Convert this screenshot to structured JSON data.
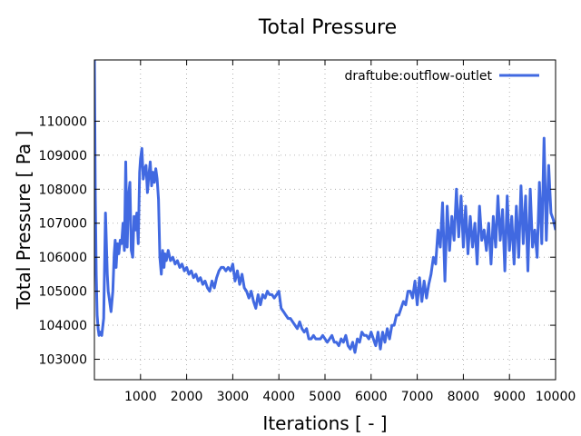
{
  "chart_data": {
    "type": "line",
    "title": "Total Pressure",
    "xlabel": "Iterations [ - ]",
    "ylabel": "Total Pressure [ Pa ]",
    "xlim": [
      0,
      10000
    ],
    "ylim": [
      102400,
      111800
    ],
    "xticks": [
      1000,
      2000,
      3000,
      4000,
      5000,
      6000,
      7000,
      8000,
      9000,
      10000
    ],
    "yticks": [
      103000,
      104000,
      105000,
      106000,
      107000,
      108000,
      109000,
      110000
    ],
    "grid": true,
    "legend_position": "top-right",
    "series": [
      {
        "name": "draftube:outflow-outlet",
        "color": "#4169e1",
        "x": [
          0,
          20,
          40,
          60,
          80,
          100,
          130,
          160,
          200,
          240,
          280,
          300,
          320,
          360,
          400,
          430,
          450,
          470,
          500,
          530,
          560,
          590,
          620,
          650,
          680,
          710,
          740,
          770,
          800,
          830,
          860,
          890,
          920,
          950,
          980,
          1000,
          1030,
          1060,
          1090,
          1120,
          1150,
          1180,
          1210,
          1240,
          1270,
          1300,
          1330,
          1360,
          1390,
          1420,
          1450,
          1480,
          1510,
          1530,
          1560,
          1600,
          1650,
          1700,
          1750,
          1800,
          1850,
          1900,
          1950,
          2000,
          2050,
          2100,
          2150,
          2200,
          2250,
          2300,
          2350,
          2400,
          2450,
          2500,
          2550,
          2600,
          2650,
          2700,
          2750,
          2800,
          2850,
          2900,
          2950,
          3000,
          3050,
          3100,
          3150,
          3200,
          3250,
          3300,
          3350,
          3400,
          3450,
          3500,
          3550,
          3600,
          3650,
          3700,
          3750,
          3800,
          3850,
          3900,
          3950,
          4000,
          4050,
          4100,
          4150,
          4200,
          4250,
          4300,
          4350,
          4400,
          4450,
          4500,
          4550,
          4600,
          4650,
          4700,
          4750,
          4800,
          4850,
          4900,
          4950,
          5000,
          5050,
          5100,
          5150,
          5200,
          5250,
          5300,
          5350,
          5400,
          5450,
          5500,
          5550,
          5600,
          5650,
          5700,
          5750,
          5800,
          5850,
          5900,
          5950,
          6000,
          6050,
          6100,
          6150,
          6200,
          6250,
          6300,
          6350,
          6400,
          6450,
          6500,
          6550,
          6600,
          6650,
          6700,
          6750,
          6800,
          6850,
          6900,
          6950,
          7000,
          7050,
          7100,
          7150,
          7200,
          7250,
          7300,
          7350,
          7400,
          7450,
          7500,
          7550,
          7600,
          7650,
          7700,
          7750,
          7800,
          7850,
          7900,
          7950,
          8000,
          8050,
          8100,
          8150,
          8200,
          8250,
          8300,
          8350,
          8400,
          8450,
          8500,
          8550,
          8600,
          8650,
          8700,
          8750,
          8800,
          8850,
          8900,
          8950,
          9000,
          9050,
          9100,
          9150,
          9200,
          9250,
          9300,
          9350,
          9400,
          9450,
          9500,
          9550,
          9600,
          9650,
          9700,
          9750,
          9800,
          9850,
          9900,
          9950,
          10000
        ],
        "y": [
          111800,
          107800,
          105500,
          104300,
          103900,
          103700,
          103800,
          103700,
          104200,
          107300,
          105500,
          105000,
          104800,
          104400,
          105000,
          106100,
          106500,
          105700,
          106400,
          106100,
          106500,
          106400,
          107000,
          106200,
          108800,
          106300,
          107800,
          108200,
          106200,
          106000,
          107200,
          106800,
          107300,
          106400,
          108500,
          108900,
          109200,
          108300,
          108600,
          108700,
          107900,
          108400,
          108800,
          108100,
          108500,
          108200,
          108600,
          108300,
          107700,
          106000,
          105500,
          106200,
          105700,
          106100,
          105900,
          106200,
          105900,
          106000,
          105800,
          105900,
          105700,
          105800,
          105600,
          105700,
          105500,
          105600,
          105400,
          105500,
          105300,
          105400,
          105200,
          105300,
          105100,
          105000,
          105300,
          105100,
          105400,
          105600,
          105700,
          105700,
          105600,
          105700,
          105600,
          105800,
          105300,
          105600,
          105200,
          105500,
          105100,
          105000,
          104800,
          105000,
          104700,
          104500,
          104900,
          104600,
          104900,
          104800,
          105000,
          104900,
          104900,
          104800,
          104900,
          105000,
          104500,
          104400,
          104300,
          104200,
          104200,
          104100,
          104000,
          103900,
          104100,
          103900,
          103800,
          103900,
          103600,
          103600,
          103700,
          103600,
          103600,
          103600,
          103700,
          103600,
          103500,
          103600,
          103700,
          103500,
          103500,
          103400,
          103600,
          103500,
          103700,
          103400,
          103300,
          103500,
          103200,
          103600,
          103500,
          103800,
          103700,
          103700,
          103600,
          103800,
          103600,
          103400,
          103800,
          103300,
          103800,
          103500,
          103900,
          103600,
          104000,
          104000,
          104300,
          104300,
          104500,
          104700,
          104600,
          105000,
          105000,
          104800,
          105300,
          104600,
          105400,
          104700,
          105300,
          104800,
          105200,
          105500,
          106000,
          105800,
          106800,
          106300,
          107600,
          105300,
          107500,
          106200,
          107200,
          106500,
          108000,
          106600,
          107800,
          106300,
          107500,
          106100,
          107200,
          106300,
          107000,
          105800,
          107500,
          106500,
          106800,
          106200,
          107000,
          105800,
          107200,
          106300,
          107800,
          106500,
          107400,
          105600,
          107800,
          106200,
          107200,
          105800,
          107500,
          106000,
          108100,
          106400,
          107800,
          105600,
          108000,
          106300,
          106800,
          106000,
          108200,
          106400,
          109500,
          106500,
          108700,
          107300,
          107100,
          106800
        ]
      }
    ]
  }
}
